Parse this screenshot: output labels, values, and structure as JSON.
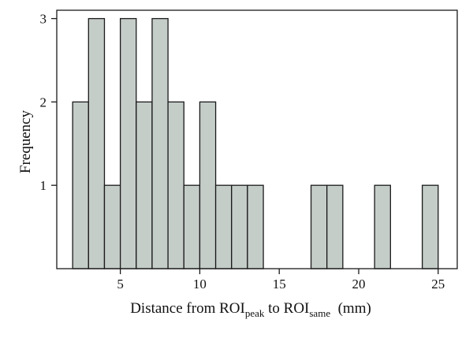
{
  "chart_data": {
    "type": "bar",
    "subtype": "histogram",
    "bin_width": 1,
    "bins": [
      {
        "start": 2,
        "end": 3,
        "value": 2
      },
      {
        "start": 3,
        "end": 4,
        "value": 3
      },
      {
        "start": 4,
        "end": 5,
        "value": 1
      },
      {
        "start": 5,
        "end": 6,
        "value": 3
      },
      {
        "start": 6,
        "end": 7,
        "value": 2
      },
      {
        "start": 7,
        "end": 8,
        "value": 3
      },
      {
        "start": 8,
        "end": 9,
        "value": 2
      },
      {
        "start": 9,
        "end": 10,
        "value": 1
      },
      {
        "start": 10,
        "end": 11,
        "value": 2
      },
      {
        "start": 11,
        "end": 12,
        "value": 1
      },
      {
        "start": 12,
        "end": 13,
        "value": 1
      },
      {
        "start": 13,
        "end": 14,
        "value": 1
      },
      {
        "start": 17,
        "end": 18,
        "value": 1
      },
      {
        "start": 18,
        "end": 19,
        "value": 1
      },
      {
        "start": 21,
        "end": 22,
        "value": 1
      },
      {
        "start": 24,
        "end": 25,
        "value": 1
      }
    ],
    "xlim": [
      1,
      26.2
    ],
    "ylim": [
      0,
      3.1
    ],
    "xticks": [
      5,
      10,
      15,
      20,
      25
    ],
    "yticks": [
      1,
      2,
      3
    ],
    "xlabel": {
      "before": "Distance from ROI",
      "sub1": "peak",
      "middle": " to ROI",
      "sub2": "same",
      "after": "  (mm)"
    },
    "ylabel": "Frequency",
    "grid": false,
    "legend": "none",
    "bar_color": "#c5cdc9",
    "edge_color": "#1a1a1a"
  }
}
